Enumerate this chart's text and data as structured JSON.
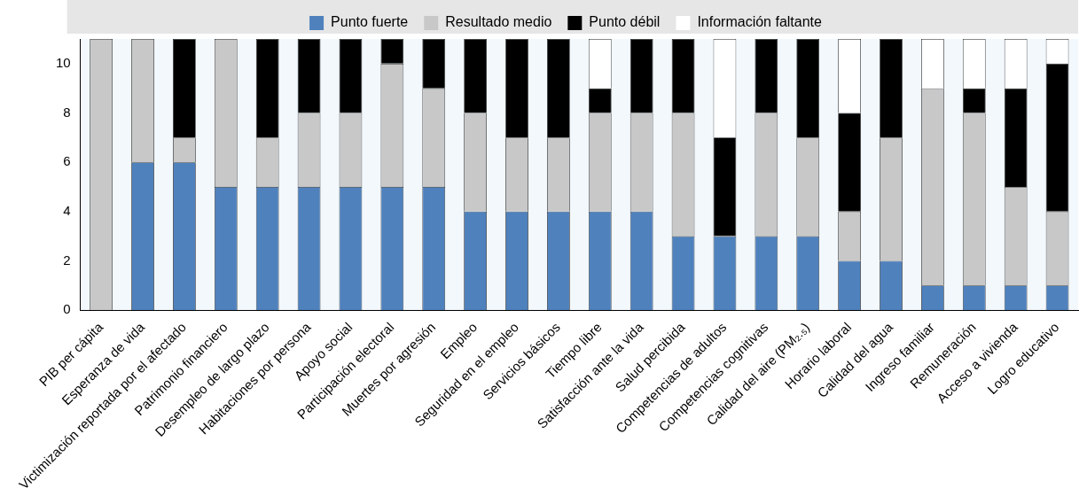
{
  "chart_data": {
    "type": "bar",
    "stacked": true,
    "categories": [
      "PIB per cápita",
      "Esperanza de vida",
      "Victimización reportada por el afectado",
      "Patrimonio financiero",
      "Desempleo de largo plazo",
      "Habitaciones por persona",
      "Apoyo social",
      "Participación electoral",
      "Muertes por agresión",
      "Empleo",
      "Seguridad en el empleo",
      "Servicios básicos",
      "Tiempo libre",
      "Satisfacción ante la vida",
      "Salud percibida",
      "Competencias de adultos",
      "Competencias cognitivas",
      "Calidad del aire (PM₂.₅)",
      "Horario laboral",
      "Calidad del agua",
      "Ingreso familiar",
      "Remuneración",
      "Acceso a vivienda",
      "Logro educativo"
    ],
    "series": [
      {
        "name": "Punto fuerte",
        "color": "#4f81bd",
        "values": [
          0,
          6,
          6,
          5,
          5,
          5,
          5,
          5,
          5,
          4,
          4,
          4,
          4,
          4,
          3,
          3,
          3,
          3,
          2,
          2,
          1,
          1,
          1,
          1
        ]
      },
      {
        "name": "Resultado medio",
        "color": "#c8c8c8",
        "values": [
          11,
          5,
          1,
          6,
          2,
          3,
          3,
          5,
          4,
          4,
          3,
          3,
          4,
          4,
          5,
          0,
          5,
          4,
          2,
          5,
          8,
          7,
          4,
          3
        ]
      },
      {
        "name": "Punto débil",
        "color": "#000000",
        "values": [
          0,
          0,
          4,
          0,
          4,
          3,
          3,
          1,
          2,
          3,
          4,
          4,
          1,
          3,
          3,
          4,
          3,
          4,
          4,
          4,
          0,
          1,
          4,
          6
        ]
      },
      {
        "name": "Información faltante",
        "color": "#ffffff",
        "values": [
          0,
          0,
          0,
          0,
          0,
          0,
          0,
          0,
          0,
          0,
          0,
          0,
          2,
          0,
          0,
          4,
          0,
          0,
          3,
          0,
          2,
          2,
          2,
          1
        ]
      }
    ],
    "ylim": [
      0,
      11
    ],
    "yticks": [
      0,
      2,
      4,
      6,
      8,
      10
    ],
    "grid": false,
    "legend": "top"
  }
}
